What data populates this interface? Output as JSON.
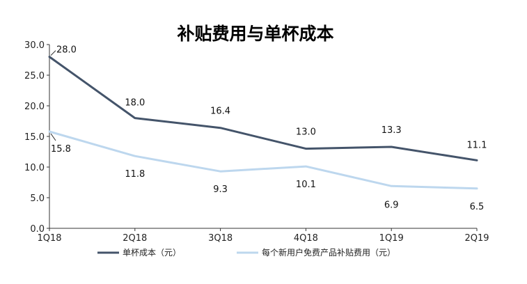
{
  "chart_data": {
    "type": "line",
    "title": "补贴费用与单杯成本",
    "x": [
      "1Q18",
      "2Q18",
      "3Q18",
      "4Q18",
      "1Q19",
      "2Q19"
    ],
    "ylim": [
      0,
      30
    ],
    "yticks": [
      "0.0",
      "5.0",
      "10.0",
      "15.0",
      "20.0",
      "25.0",
      "30.0"
    ],
    "grid": false,
    "legend_position": "bottom",
    "series": [
      {
        "name": "单杯成本（元）",
        "color": "#44546a",
        "values": [
          28.0,
          18.0,
          16.4,
          13.0,
          13.3,
          11.1
        ],
        "labels": [
          "28.0",
          "18.0",
          "16.4",
          "13.0",
          "13.3",
          "11.1"
        ]
      },
      {
        "name": "每个新用户免费产品补贴费用（元）",
        "color": "#bdd7ee",
        "values": [
          15.8,
          11.8,
          9.3,
          10.1,
          6.9,
          6.5
        ],
        "labels": [
          "15.8",
          "11.8",
          "9.3",
          "10.1",
          "6.9",
          "6.5"
        ]
      }
    ]
  }
}
